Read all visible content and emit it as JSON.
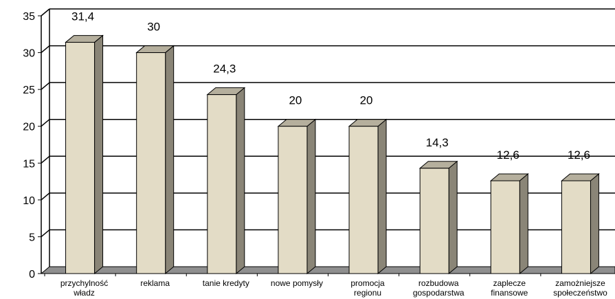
{
  "chart_data": {
    "type": "bar",
    "categories": [
      "przychylność władz",
      "reklama",
      "tanie kredyty",
      "nowe pomysły",
      "promocja regionu",
      "rozbudowa gospodarstwa",
      "zaplecze finansowe",
      "zamożniejsze społeczeństwo"
    ],
    "values": [
      31.4,
      30,
      24.3,
      20,
      20,
      14.3,
      12.6,
      12.6
    ],
    "data_labels": [
      "31,4",
      "30",
      "24,3",
      "20",
      "20",
      "14,3",
      "12,6",
      "12,6"
    ],
    "title": "",
    "xlabel": "",
    "ylabel": "",
    "ylim": [
      0,
      35
    ],
    "yticks": [
      0,
      5,
      10,
      15,
      20,
      25,
      30,
      35
    ],
    "grid": true,
    "legend": "none",
    "style": "3d-bar",
    "colors": {
      "bar_front": "#e3dcc6",
      "bar_side": "#8a8577",
      "bar_top": "#b5af9d",
      "floor": "#8f8f8f",
      "grid": "#000000"
    }
  }
}
